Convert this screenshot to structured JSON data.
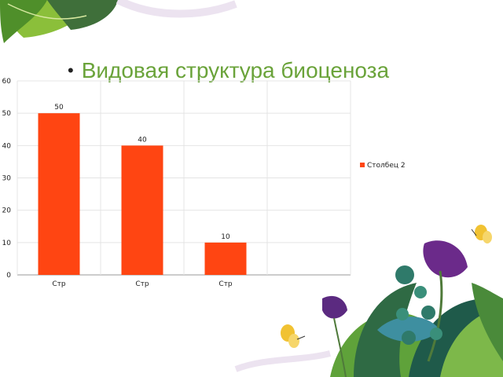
{
  "slide": {
    "title": "Видовая структура биоценоза",
    "bullet": "•"
  },
  "colors": {
    "bar": "#ff4512",
    "title": "#6aa33a",
    "grid": "#e4e4e4",
    "axis": "#9a9a9a"
  },
  "chart_data": {
    "type": "bar",
    "categories": [
      "Стр",
      "Стр",
      "Стр",
      ""
    ],
    "series": [
      {
        "name": "Столбец 2",
        "values": [
          50,
          40,
          10,
          null
        ]
      }
    ],
    "title": "",
    "xlabel": "",
    "ylabel": "",
    "ylim": [
      0,
      60
    ],
    "yticks": [
      0,
      10,
      20,
      30,
      40,
      50,
      60
    ],
    "data_labels": true,
    "grid": true,
    "legend": "right"
  }
}
